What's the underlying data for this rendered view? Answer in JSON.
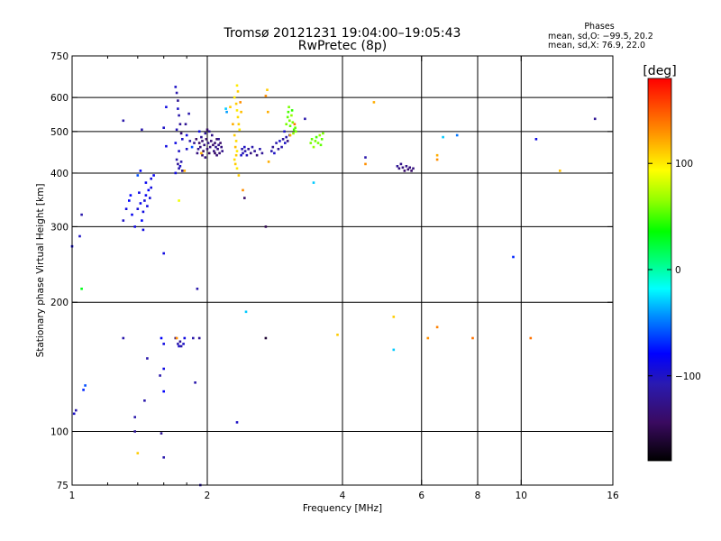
{
  "chart_data": {
    "type": "scatter",
    "title": "Tromsø 20121231 19:04:00–19:05:43",
    "subtitle": "RwPretec (8p)",
    "xlabel": "Frequency [MHz]",
    "ylabel": "Stationary phase Virtual Height [km]",
    "x_scale": "log",
    "y_scale": "log",
    "xlim": [
      1,
      16
    ],
    "ylim": [
      75,
      750
    ],
    "x_ticks": [
      {
        "value": 1,
        "label": "1"
      },
      {
        "value": 2,
        "label": "2"
      },
      {
        "value": 4,
        "label": "4"
      },
      {
        "value": 6,
        "label": "6"
      },
      {
        "value": 8,
        "label": "8"
      },
      {
        "value": 10,
        "label": "10"
      },
      {
        "value": 16,
        "label": "16"
      }
    ],
    "y_ticks": [
      {
        "value": 75,
        "label": "75"
      },
      {
        "value": 100,
        "label": "100"
      },
      {
        "value": 200,
        "label": "200"
      },
      {
        "value": 300,
        "label": "300"
      },
      {
        "value": 400,
        "label": "400"
      },
      {
        "value": 500,
        "label": "500"
      },
      {
        "value": 600,
        "label": "600"
      },
      {
        "value": 750,
        "label": "750"
      }
    ],
    "x_gridlines": [
      2,
      4,
      6,
      8,
      10
    ],
    "y_gridlines": [
      100,
      200,
      300,
      400,
      500,
      600
    ],
    "grid": true,
    "phases_header": "Phases",
    "stats_o": "mean, sd,O: −99.5, 20.2",
    "stats_x": "mean, sd,X:  76.9, 22.0",
    "colorbar": {
      "label": "[deg]",
      "range": [
        -180,
        180
      ],
      "ticks": [
        {
          "value": 100,
          "label": "100"
        },
        {
          "value": 0,
          "label": "0"
        },
        {
          "value": -100,
          "label": "−100"
        }
      ]
    },
    "points": [
      {
        "x": 1.0,
        "y": 270,
        "p": -90
      },
      {
        "x": 1.04,
        "y": 285,
        "p": -100
      },
      {
        "x": 1.05,
        "y": 320,
        "p": -110
      },
      {
        "x": 1.05,
        "y": 215,
        "p": 30
      },
      {
        "x": 1.02,
        "y": 112,
        "p": -110
      },
      {
        "x": 1.01,
        "y": 110,
        "p": -100
      },
      {
        "x": 1.07,
        "y": 128,
        "p": -60
      },
      {
        "x": 1.06,
        "y": 125,
        "p": -70
      },
      {
        "x": 1.3,
        "y": 530,
        "p": -110
      },
      {
        "x": 1.3,
        "y": 165,
        "p": -110
      },
      {
        "x": 1.38,
        "y": 108,
        "p": -110
      },
      {
        "x": 1.4,
        "y": 89,
        "p": 110
      },
      {
        "x": 1.38,
        "y": 100,
        "p": -120
      },
      {
        "x": 1.3,
        "y": 310,
        "p": -100
      },
      {
        "x": 1.32,
        "y": 330,
        "p": -90
      },
      {
        "x": 1.34,
        "y": 345,
        "p": -80
      },
      {
        "x": 1.35,
        "y": 355,
        "p": -80
      },
      {
        "x": 1.36,
        "y": 320,
        "p": -85
      },
      {
        "x": 1.38,
        "y": 300,
        "p": -90
      },
      {
        "x": 1.4,
        "y": 330,
        "p": -95
      },
      {
        "x": 1.41,
        "y": 360,
        "p": -90
      },
      {
        "x": 1.42,
        "y": 340,
        "p": -85
      },
      {
        "x": 1.43,
        "y": 310,
        "p": -80
      },
      {
        "x": 1.44,
        "y": 325,
        "p": -90
      },
      {
        "x": 1.45,
        "y": 345,
        "p": -95
      },
      {
        "x": 1.46,
        "y": 355,
        "p": -85
      },
      {
        "x": 1.47,
        "y": 335,
        "p": -90
      },
      {
        "x": 1.48,
        "y": 365,
        "p": -80
      },
      {
        "x": 1.49,
        "y": 350,
        "p": -95
      },
      {
        "x": 1.5,
        "y": 370,
        "p": -90
      },
      {
        "x": 1.4,
        "y": 395,
        "p": -60
      },
      {
        "x": 1.42,
        "y": 405,
        "p": -80
      },
      {
        "x": 1.46,
        "y": 380,
        "p": -85
      },
      {
        "x": 1.44,
        "y": 295,
        "p": -90
      },
      {
        "x": 1.43,
        "y": 505,
        "p": -110
      },
      {
        "x": 1.5,
        "y": 388,
        "p": -90
      },
      {
        "x": 1.47,
        "y": 148,
        "p": -110
      },
      {
        "x": 1.45,
        "y": 118,
        "p": -110
      },
      {
        "x": 1.52,
        "y": 395,
        "p": -85
      },
      {
        "x": 1.6,
        "y": 510,
        "p": -100
      },
      {
        "x": 1.62,
        "y": 570,
        "p": -90
      },
      {
        "x": 1.6,
        "y": 260,
        "p": -90
      },
      {
        "x": 1.58,
        "y": 165,
        "p": -80
      },
      {
        "x": 1.6,
        "y": 160,
        "p": -90
      },
      {
        "x": 1.57,
        "y": 135,
        "p": -110
      },
      {
        "x": 1.6,
        "y": 124,
        "p": -80
      },
      {
        "x": 1.58,
        "y": 99,
        "p": -120
      },
      {
        "x": 1.6,
        "y": 87,
        "p": -110
      },
      {
        "x": 1.6,
        "y": 140,
        "p": -90
      },
      {
        "x": 1.62,
        "y": 462,
        "p": -90
      },
      {
        "x": 1.7,
        "y": 635,
        "p": -100
      },
      {
        "x": 1.71,
        "y": 615,
        "p": -110
      },
      {
        "x": 1.72,
        "y": 590,
        "p": -120
      },
      {
        "x": 1.72,
        "y": 565,
        "p": -100
      },
      {
        "x": 1.73,
        "y": 545,
        "p": -110
      },
      {
        "x": 1.74,
        "y": 520,
        "p": -120
      },
      {
        "x": 1.71,
        "y": 505,
        "p": -105
      },
      {
        "x": 1.75,
        "y": 495,
        "p": -130
      },
      {
        "x": 1.76,
        "y": 480,
        "p": -100
      },
      {
        "x": 1.7,
        "y": 470,
        "p": -90
      },
      {
        "x": 1.73,
        "y": 450,
        "p": -100
      },
      {
        "x": 1.71,
        "y": 430,
        "p": -110
      },
      {
        "x": 1.72,
        "y": 420,
        "p": -120
      },
      {
        "x": 1.73,
        "y": 410,
        "p": -110
      },
      {
        "x": 1.74,
        "y": 415,
        "p": -100
      },
      {
        "x": 1.75,
        "y": 425,
        "p": -110
      },
      {
        "x": 1.76,
        "y": 405,
        "p": -120
      },
      {
        "x": 1.7,
        "y": 400,
        "p": -90
      },
      {
        "x": 1.73,
        "y": 345,
        "p": 90
      },
      {
        "x": 1.7,
        "y": 165,
        "p": -130
      },
      {
        "x": 1.72,
        "y": 160,
        "p": -110
      },
      {
        "x": 1.73,
        "y": 158,
        "p": -100
      },
      {
        "x": 1.74,
        "y": 162,
        "p": -120
      },
      {
        "x": 1.75,
        "y": 158,
        "p": -110
      },
      {
        "x": 1.77,
        "y": 160,
        "p": -100
      },
      {
        "x": 1.78,
        "y": 165,
        "p": -90
      },
      {
        "x": 1.71,
        "y": 165,
        "p": 130
      },
      {
        "x": 1.8,
        "y": 490,
        "p": -90
      },
      {
        "x": 1.82,
        "y": 550,
        "p": -110
      },
      {
        "x": 1.79,
        "y": 520,
        "p": -120
      },
      {
        "x": 1.78,
        "y": 405,
        "p": 120
      },
      {
        "x": 1.8,
        "y": 455,
        "p": -100
      },
      {
        "x": 1.83,
        "y": 475,
        "p": -110
      },
      {
        "x": 1.85,
        "y": 460,
        "p": -60
      },
      {
        "x": 1.86,
        "y": 165,
        "p": -110
      },
      {
        "x": 1.88,
        "y": 130,
        "p": -110
      },
      {
        "x": 1.9,
        "y": 215,
        "p": -110
      },
      {
        "x": 1.92,
        "y": 165,
        "p": -120
      },
      {
        "x": 1.93,
        "y": 75,
        "p": -110
      },
      {
        "x": 1.87,
        "y": 470,
        "p": -120
      },
      {
        "x": 1.89,
        "y": 480,
        "p": -140
      },
      {
        "x": 1.9,
        "y": 445,
        "p": -130
      },
      {
        "x": 1.91,
        "y": 455,
        "p": -120
      },
      {
        "x": 1.92,
        "y": 470,
        "p": -140
      },
      {
        "x": 1.93,
        "y": 460,
        "p": -130
      },
      {
        "x": 1.94,
        "y": 485,
        "p": -120
      },
      {
        "x": 1.95,
        "y": 475,
        "p": -135
      },
      {
        "x": 1.96,
        "y": 450,
        "p": -140
      },
      {
        "x": 1.97,
        "y": 465,
        "p": -130
      },
      {
        "x": 1.98,
        "y": 495,
        "p": -120
      },
      {
        "x": 1.99,
        "y": 480,
        "p": -140
      },
      {
        "x": 2.0,
        "y": 455,
        "p": -135
      },
      {
        "x": 2.01,
        "y": 470,
        "p": -125
      },
      {
        "x": 2.02,
        "y": 445,
        "p": -140
      },
      {
        "x": 2.03,
        "y": 460,
        "p": -130
      },
      {
        "x": 2.04,
        "y": 475,
        "p": -135
      },
      {
        "x": 2.05,
        "y": 490,
        "p": -125
      },
      {
        "x": 2.06,
        "y": 465,
        "p": -140
      },
      {
        "x": 2.07,
        "y": 450,
        "p": -130
      },
      {
        "x": 2.08,
        "y": 470,
        "p": -135
      },
      {
        "x": 2.09,
        "y": 460,
        "p": -120
      },
      {
        "x": 2.1,
        "y": 480,
        "p": -140
      },
      {
        "x": 2.11,
        "y": 455,
        "p": -130
      },
      {
        "x": 2.12,
        "y": 465,
        "p": -125
      },
      {
        "x": 2.13,
        "y": 445,
        "p": -135
      },
      {
        "x": 2.14,
        "y": 470,
        "p": -140
      },
      {
        "x": 2.15,
        "y": 460,
        "p": -130
      },
      {
        "x": 2.16,
        "y": 450,
        "p": -125
      },
      {
        "x": 1.95,
        "y": 440,
        "p": -135
      },
      {
        "x": 1.98,
        "y": 435,
        "p": -130
      },
      {
        "x": 2.02,
        "y": 500,
        "p": -120
      },
      {
        "x": 2.0,
        "y": 505,
        "p": -140
      },
      {
        "x": 2.08,
        "y": 445,
        "p": -140
      },
      {
        "x": 2.12,
        "y": 480,
        "p": -120
      },
      {
        "x": 2.1,
        "y": 440,
        "p": -135
      },
      {
        "x": 1.92,
        "y": 500,
        "p": -90
      },
      {
        "x": 1.94,
        "y": 445,
        "p": 120
      },
      {
        "x": 2.25,
        "y": 570,
        "p": 110
      },
      {
        "x": 2.3,
        "y": 600,
        "p": 100
      },
      {
        "x": 2.32,
        "y": 580,
        "p": 110
      },
      {
        "x": 2.33,
        "y": 560,
        "p": 100
      },
      {
        "x": 2.34,
        "y": 540,
        "p": 105
      },
      {
        "x": 2.35,
        "y": 520,
        "p": 110
      },
      {
        "x": 2.36,
        "y": 505,
        "p": 100
      },
      {
        "x": 2.3,
        "y": 490,
        "p": 110
      },
      {
        "x": 2.32,
        "y": 475,
        "p": 105
      },
      {
        "x": 2.31,
        "y": 460,
        "p": 115
      },
      {
        "x": 2.33,
        "y": 450,
        "p": 100
      },
      {
        "x": 2.32,
        "y": 440,
        "p": 110
      },
      {
        "x": 2.3,
        "y": 430,
        "p": 105
      },
      {
        "x": 2.31,
        "y": 420,
        "p": 110
      },
      {
        "x": 2.33,
        "y": 410,
        "p": 100
      },
      {
        "x": 2.35,
        "y": 395,
        "p": 110
      },
      {
        "x": 2.37,
        "y": 585,
        "p": 130
      },
      {
        "x": 2.33,
        "y": 640,
        "p": 100
      },
      {
        "x": 2.34,
        "y": 620,
        "p": 110
      },
      {
        "x": 2.38,
        "y": 555,
        "p": 115
      },
      {
        "x": 2.28,
        "y": 520,
        "p": 120
      },
      {
        "x": 2.4,
        "y": 365,
        "p": 130
      },
      {
        "x": 2.42,
        "y": 350,
        "p": -140
      },
      {
        "x": 2.44,
        "y": 190,
        "p": -30
      },
      {
        "x": 2.33,
        "y": 105,
        "p": -100
      },
      {
        "x": 2.2,
        "y": 565,
        "p": -30
      },
      {
        "x": 2.21,
        "y": 555,
        "p": -40
      },
      {
        "x": 2.38,
        "y": 440,
        "p": -100
      },
      {
        "x": 2.39,
        "y": 455,
        "p": -110
      },
      {
        "x": 2.4,
        "y": 445,
        "p": -105
      },
      {
        "x": 2.42,
        "y": 460,
        "p": -100
      },
      {
        "x": 2.43,
        "y": 450,
        "p": -110
      },
      {
        "x": 2.45,
        "y": 440,
        "p": -105
      },
      {
        "x": 2.47,
        "y": 455,
        "p": -120
      },
      {
        "x": 2.5,
        "y": 445,
        "p": -130
      },
      {
        "x": 2.52,
        "y": 460,
        "p": -110
      },
      {
        "x": 2.55,
        "y": 450,
        "p": -120
      },
      {
        "x": 2.58,
        "y": 440,
        "p": -130
      },
      {
        "x": 2.62,
        "y": 455,
        "p": -110
      },
      {
        "x": 2.65,
        "y": 445,
        "p": -120
      },
      {
        "x": 2.7,
        "y": 605,
        "p": 130
      },
      {
        "x": 2.72,
        "y": 625,
        "p": 110
      },
      {
        "x": 2.73,
        "y": 555,
        "p": 120
      },
      {
        "x": 2.74,
        "y": 425,
        "p": 120
      },
      {
        "x": 2.7,
        "y": 300,
        "p": -150
      },
      {
        "x": 2.7,
        "y": 165,
        "p": -160
      },
      {
        "x": 2.78,
        "y": 450,
        "p": -110
      },
      {
        "x": 2.8,
        "y": 460,
        "p": -120
      },
      {
        "x": 2.82,
        "y": 445,
        "p": -100
      },
      {
        "x": 2.85,
        "y": 470,
        "p": -110
      },
      {
        "x": 2.88,
        "y": 455,
        "p": -120
      },
      {
        "x": 2.9,
        "y": 475,
        "p": -100
      },
      {
        "x": 2.93,
        "y": 460,
        "p": -110
      },
      {
        "x": 2.95,
        "y": 480,
        "p": -120
      },
      {
        "x": 2.98,
        "y": 470,
        "p": -100
      },
      {
        "x": 3.0,
        "y": 485,
        "p": -110
      },
      {
        "x": 3.02,
        "y": 475,
        "p": -130
      },
      {
        "x": 3.05,
        "y": 490,
        "p": -120
      },
      {
        "x": 2.97,
        "y": 500,
        "p": -100
      },
      {
        "x": 3.0,
        "y": 520,
        "p": 60
      },
      {
        "x": 3.02,
        "y": 540,
        "p": 55
      },
      {
        "x": 3.03,
        "y": 555,
        "p": 50
      },
      {
        "x": 3.05,
        "y": 530,
        "p": 60
      },
      {
        "x": 3.06,
        "y": 515,
        "p": 55
      },
      {
        "x": 3.08,
        "y": 545,
        "p": 65
      },
      {
        "x": 3.1,
        "y": 525,
        "p": 60
      },
      {
        "x": 3.12,
        "y": 505,
        "p": 50
      },
      {
        "x": 3.14,
        "y": 510,
        "p": 55
      },
      {
        "x": 3.15,
        "y": 500,
        "p": 60
      },
      {
        "x": 3.04,
        "y": 570,
        "p": 60
      },
      {
        "x": 3.09,
        "y": 560,
        "p": 45
      },
      {
        "x": 3.11,
        "y": 495,
        "p": 65
      },
      {
        "x": 3.13,
        "y": 520,
        "p": 140
      },
      {
        "x": 3.06,
        "y": 490,
        "p": 120
      },
      {
        "x": 3.3,
        "y": 535,
        "p": -110
      },
      {
        "x": 3.45,
        "y": 380,
        "p": -30
      },
      {
        "x": 3.4,
        "y": 470,
        "p": 60
      },
      {
        "x": 3.42,
        "y": 480,
        "p": 55
      },
      {
        "x": 3.45,
        "y": 460,
        "p": 65
      },
      {
        "x": 3.48,
        "y": 475,
        "p": 60
      },
      {
        "x": 3.5,
        "y": 485,
        "p": 50
      },
      {
        "x": 3.53,
        "y": 470,
        "p": 60
      },
      {
        "x": 3.56,
        "y": 490,
        "p": 65
      },
      {
        "x": 3.6,
        "y": 480,
        "p": 55
      },
      {
        "x": 3.62,
        "y": 495,
        "p": 60
      },
      {
        "x": 3.58,
        "y": 465,
        "p": 55
      },
      {
        "x": 3.9,
        "y": 168,
        "p": 110
      },
      {
        "x": 4.5,
        "y": 435,
        "p": -110
      },
      {
        "x": 4.5,
        "y": 420,
        "p": 130
      },
      {
        "x": 4.7,
        "y": 585,
        "p": 120
      },
      {
        "x": 5.2,
        "y": 185,
        "p": 110
      },
      {
        "x": 5.2,
        "y": 155,
        "p": -30
      },
      {
        "x": 5.3,
        "y": 415,
        "p": -120
      },
      {
        "x": 5.35,
        "y": 410,
        "p": -130
      },
      {
        "x": 5.4,
        "y": 420,
        "p": -125
      },
      {
        "x": 5.45,
        "y": 412,
        "p": -130
      },
      {
        "x": 5.5,
        "y": 405,
        "p": -140
      },
      {
        "x": 5.55,
        "y": 415,
        "p": -125
      },
      {
        "x": 5.6,
        "y": 408,
        "p": -135
      },
      {
        "x": 5.65,
        "y": 412,
        "p": -130
      },
      {
        "x": 5.7,
        "y": 405,
        "p": -140
      },
      {
        "x": 5.75,
        "y": 410,
        "p": -130
      },
      {
        "x": 6.2,
        "y": 165,
        "p": 130
      },
      {
        "x": 6.5,
        "y": 175,
        "p": 135
      },
      {
        "x": 6.5,
        "y": 430,
        "p": 130
      },
      {
        "x": 6.5,
        "y": 440,
        "p": 120
      },
      {
        "x": 6.7,
        "y": 485,
        "p": -30
      },
      {
        "x": 7.2,
        "y": 490,
        "p": -50
      },
      {
        "x": 7.8,
        "y": 165,
        "p": 140
      },
      {
        "x": 9.6,
        "y": 255,
        "p": -70
      },
      {
        "x": 10.5,
        "y": 165,
        "p": 140
      },
      {
        "x": 10.8,
        "y": 480,
        "p": -90
      },
      {
        "x": 12.2,
        "y": 405,
        "p": 115
      },
      {
        "x": 14.6,
        "y": 535,
        "p": -120
      }
    ]
  }
}
